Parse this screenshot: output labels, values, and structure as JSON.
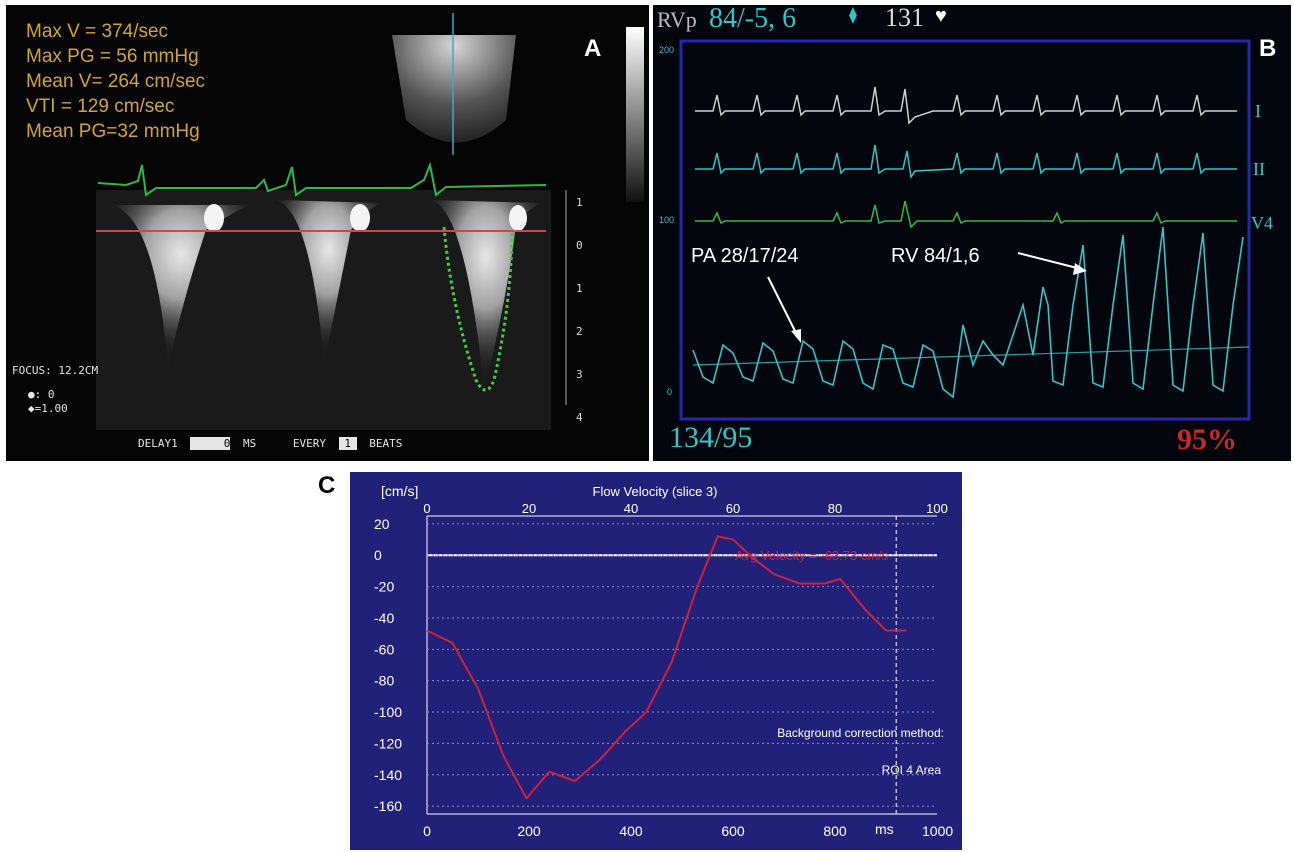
{
  "panel_a": {
    "letter": "A",
    "measurements": [
      "Max V = 374/sec",
      "Max PG = 56 mmHg",
      "Mean V= 264 cm/sec",
      "VTI = 129 cm/sec",
      "Mean PG=32 mmHg"
    ],
    "focus": "FOCUS: 12.2CM",
    "readout_1": "●: 0",
    "readout_2": "◆=1.00",
    "delay_label": "DELAY1",
    "delay_value": "0",
    "delay_unit": "MS",
    "every_label": "EVERY",
    "every_value": "1",
    "beats_label": "BEATS",
    "scale_ticks": [
      "1",
      "0",
      "1",
      "2",
      "3",
      "4"
    ],
    "colors": {
      "text": "#d2a52e",
      "ecg": "#2db84a",
      "baseline": "#e04040",
      "trace": "#3ad23a"
    }
  },
  "panel_b": {
    "letter": "B",
    "header_label": "RVp",
    "header_pressure": "84/-5, 6",
    "heart_rate": "131",
    "heart_icon": "heart-icon",
    "scale_top": "200",
    "scale_mid": "100",
    "scale_bottom": "0",
    "lead_1": "I",
    "lead_2": "II",
    "lead_3": "V4",
    "annotation_pa": "PA 28/17/24",
    "annotation_rv": "RV 84/1,6",
    "bp": "134/95",
    "spo2": "95%",
    "colors": {
      "teal": "#33c5c8",
      "frame": "#2222aa",
      "lead1": "#cfcfcf",
      "lead3": "#35b94a",
      "spo2": "#c62b2b"
    }
  },
  "panel_c": {
    "letter": "C",
    "chart_data": {
      "type": "line",
      "title": "Flow Velocity (slice 3)",
      "ylabel": "[cm/s]",
      "xlabel": "ms",
      "x_ticks_bottom": [
        "0",
        "200",
        "400",
        "600",
        "800",
        "1000"
      ],
      "x_ticks_top": [
        "0",
        "20",
        "40",
        "60",
        "80",
        "100"
      ],
      "y_ticks": [
        "20",
        "0",
        "-20",
        "-40",
        "-60",
        "-80",
        "-100",
        "-120",
        "-140",
        "-160"
      ],
      "xlim": [
        0,
        1000
      ],
      "ylim": [
        -165,
        25
      ],
      "avg_label": "Avg Velocity = -63.73 cm/s",
      "note_1": "Background correction method:",
      "note_2": "ROI 4 Area",
      "series": [
        {
          "x": [
            0,
            50,
            100,
            150,
            195,
            240,
            290,
            340,
            390,
            430,
            480,
            530,
            570,
            600,
            640,
            680,
            730,
            780,
            810,
            860,
            900,
            940
          ],
          "y": [
            -48,
            -56,
            -85,
            -128,
            -155,
            -138,
            -144,
            -130,
            -112,
            -100,
            -68,
            -20,
            12,
            10,
            -2,
            -12,
            -18,
            -18,
            -15,
            -35,
            -48,
            -48
          ]
        }
      ],
      "colors": {
        "background": "#22217a",
        "line": "#d0203a",
        "axis": "#ffffff",
        "text": "#ffffff"
      }
    }
  }
}
